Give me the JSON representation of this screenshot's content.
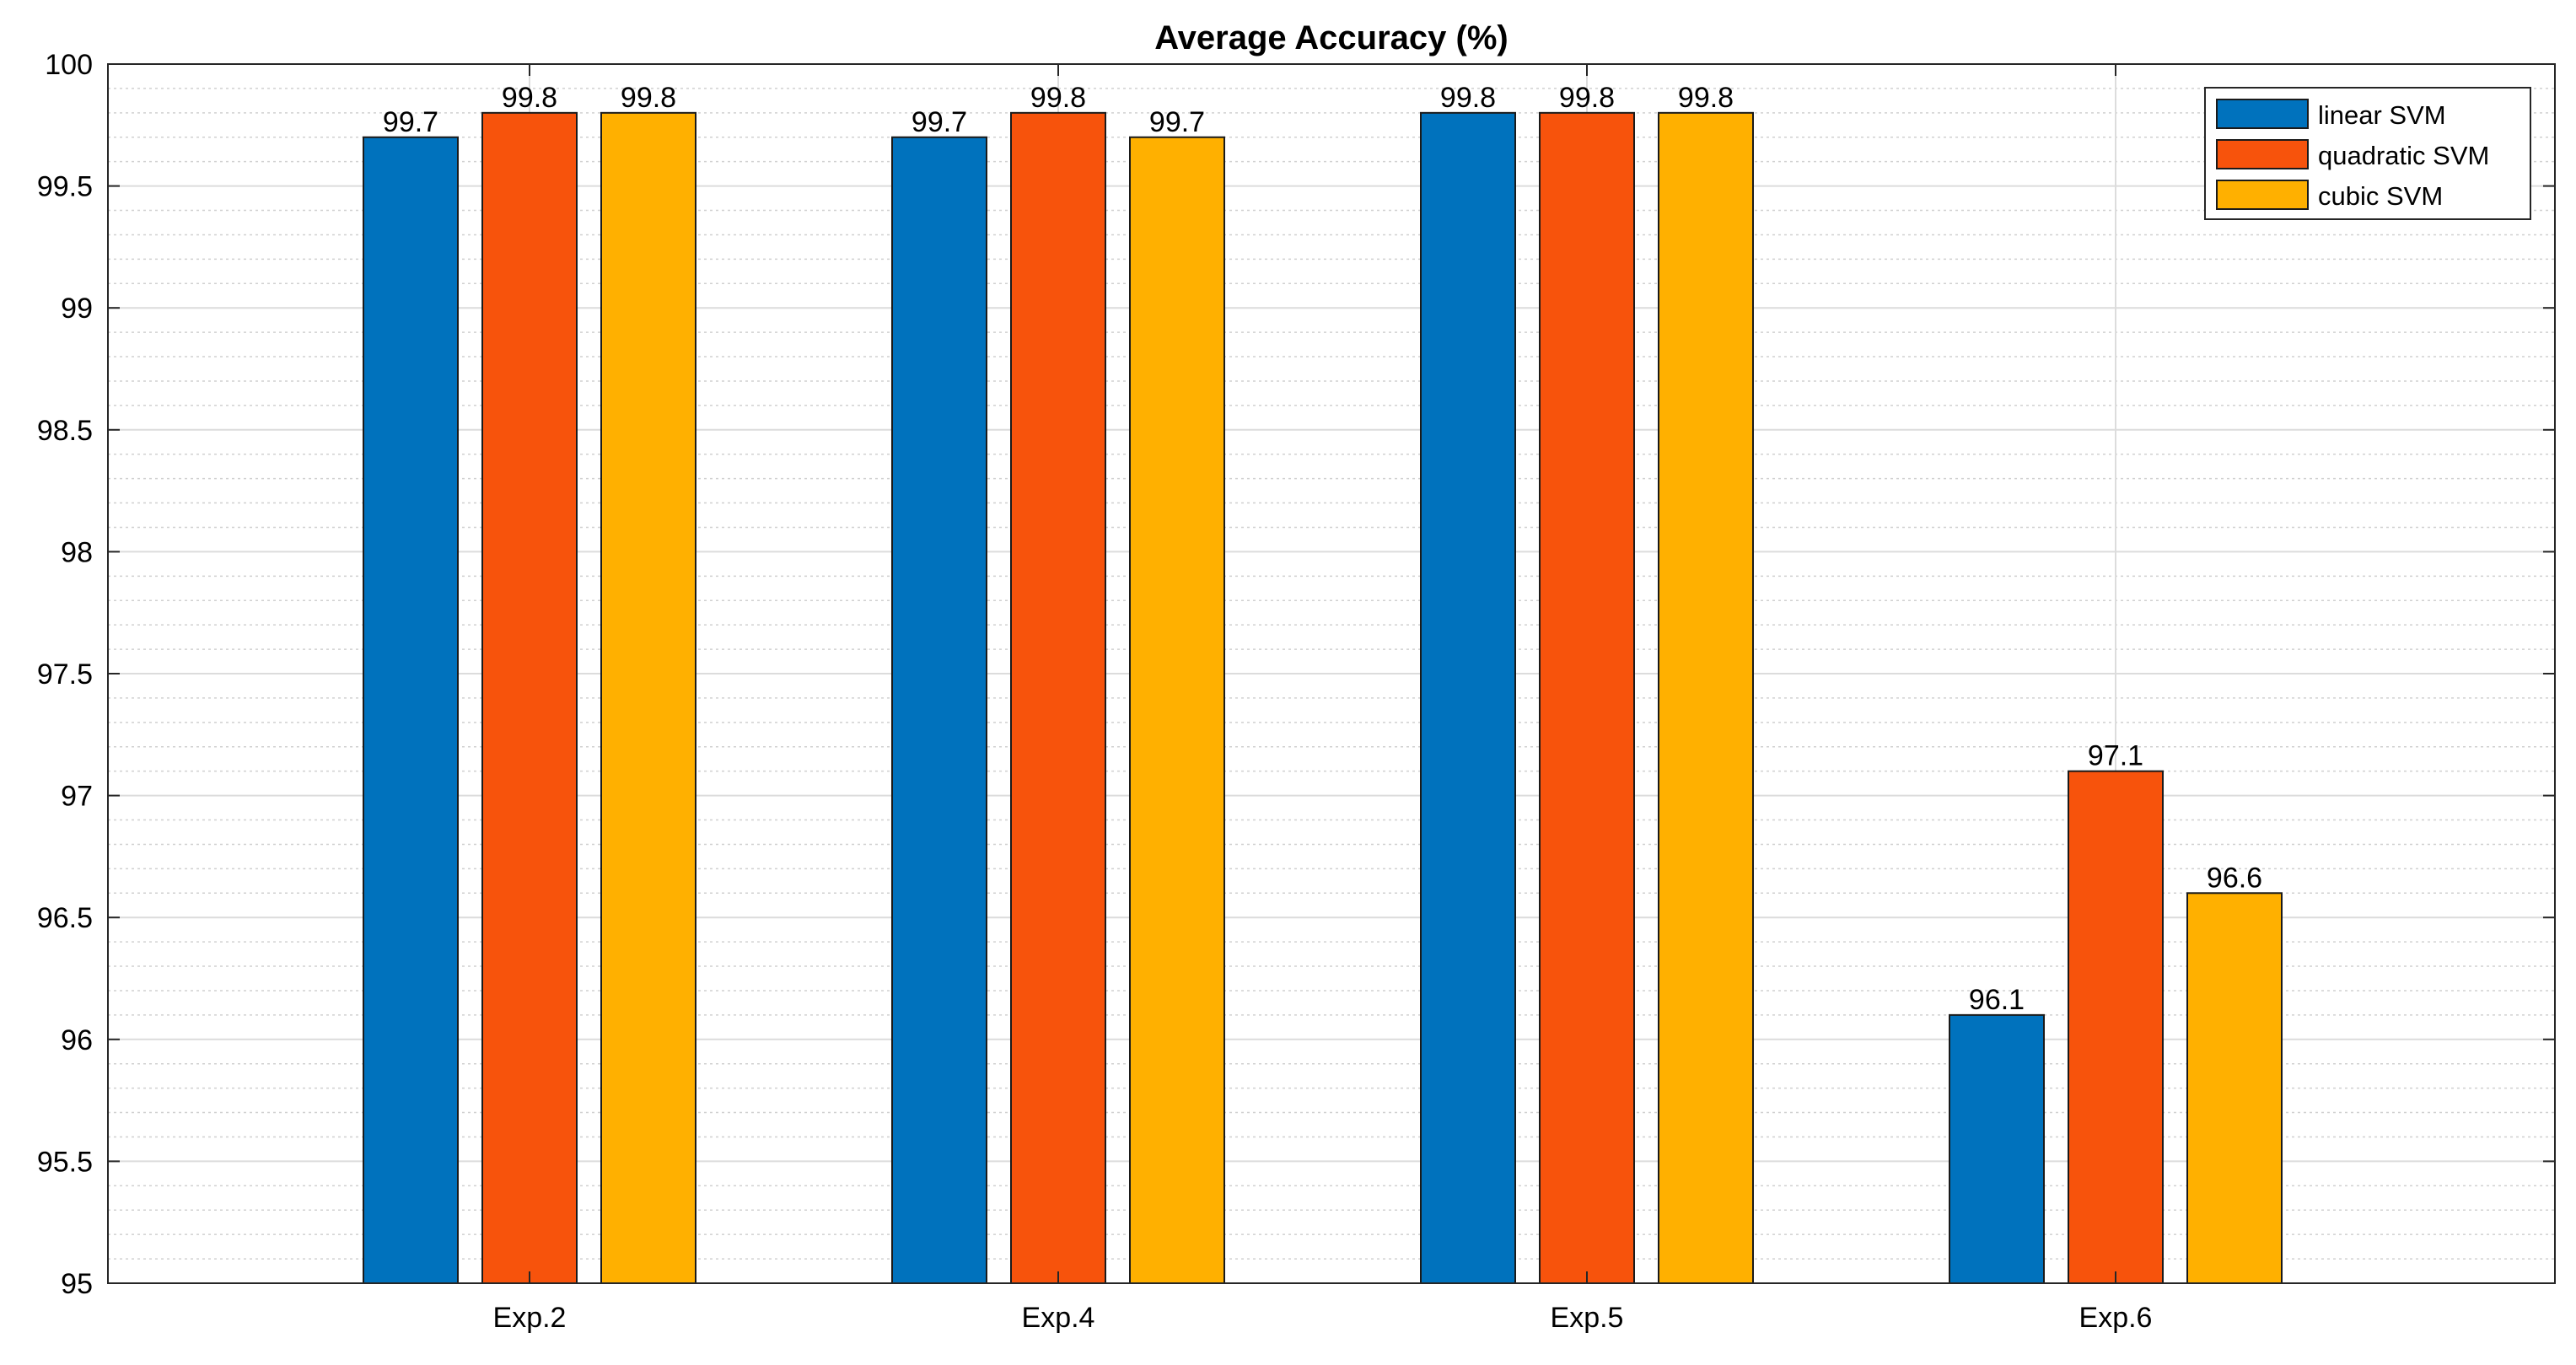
{
  "chart_data": {
    "type": "bar",
    "title": "Average Accuracy (%)",
    "xlabel": "",
    "ylabel": "",
    "categories": [
      "Exp.2",
      "Exp.4",
      "Exp.5",
      "Exp.6"
    ],
    "series": [
      {
        "name": "linear SVM",
        "values": [
          99.7,
          99.7,
          99.8,
          96.1
        ],
        "color": "#0072BD"
      },
      {
        "name": "quadratic SVM",
        "values": [
          99.8,
          99.8,
          99.8,
          97.1
        ],
        "color": "#F7530C"
      },
      {
        "name": "cubic SVM",
        "values": [
          99.8,
          99.7,
          99.8,
          96.6
        ],
        "color": "#FFB000"
      }
    ],
    "ylim": [
      95,
      100
    ],
    "yticks": [
      95,
      95.5,
      96,
      96.5,
      97,
      97.5,
      98,
      98.5,
      99,
      99.5,
      100
    ],
    "yticklabels": [
      "95",
      "95.5",
      "96",
      "96.5",
      "97",
      "97.5",
      "98",
      "98.5",
      "99",
      "99.5",
      "100"
    ],
    "data_labels": [
      [
        "99.7",
        "99.7",
        "99.8",
        "96.1"
      ],
      [
        "99.8",
        "99.8",
        "99.8",
        "97.1"
      ],
      [
        "99.8",
        "99.7",
        "99.8",
        "96.6"
      ]
    ],
    "grid": true,
    "minor_grid": true,
    "legend_position": "top-right"
  }
}
